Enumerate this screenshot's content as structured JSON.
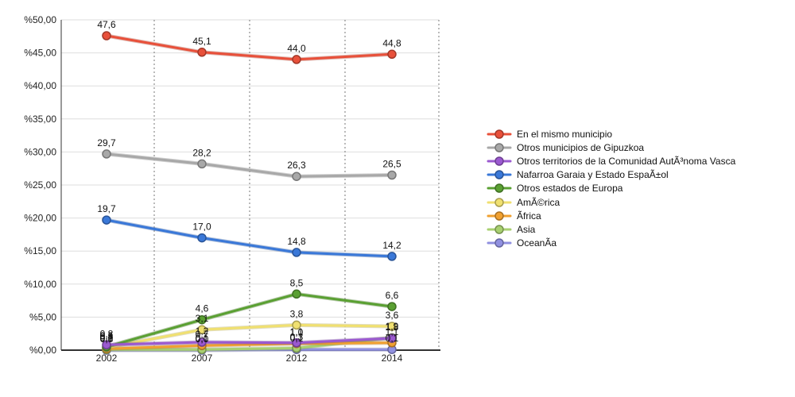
{
  "chart_data": {
    "type": "line",
    "x": [
      "2002",
      "2007",
      "2012",
      "2014"
    ],
    "ylim": [
      0,
      50
    ],
    "yticks": [
      "%0,00",
      "%5,00",
      "%10,00",
      "%15,00",
      "%20,00",
      "%25,00",
      "%30,00",
      "%35,00",
      "%40,00",
      "%45,00",
      "%50,00"
    ],
    "grid": "vertical dotted",
    "legend_position": "right",
    "series": [
      {
        "name": "En el mismo municipio",
        "color": "#e8503a",
        "values": [
          47.6,
          45.1,
          44.0,
          44.8
        ],
        "labels": [
          "47,6",
          "45,1",
          "44,0",
          "44,8"
        ]
      },
      {
        "name": "Otros municipios de Gipuzkoa",
        "color": "#a8a8a8",
        "values": [
          29.7,
          28.2,
          26.3,
          26.5
        ],
        "labels": [
          "29,7",
          "28,2",
          "26,3",
          "26,5"
        ]
      },
      {
        "name": "Otros territorios de la Comunidad AutÃ³noma Vasca",
        "color": "#9b59d0",
        "values": [
          0.8,
          1.2,
          1.1,
          1.8
        ],
        "labels": [
          "0,8",
          "1,2",
          "1,1",
          "1,8"
        ]
      },
      {
        "name": "Nafarroa Garaia y Estado EspaÃ±ol",
        "color": "#3a78d8",
        "values": [
          19.7,
          17.0,
          14.8,
          14.2
        ],
        "labels": [
          "19,7",
          "17,0",
          "14,8",
          "14,2"
        ]
      },
      {
        "name": "Otros estados de Europa",
        "color": "#5aa032",
        "values": [
          0.5,
          4.6,
          8.5,
          6.6
        ],
        "labels": [
          "0,5",
          "4,6",
          "8,5",
          "6,6"
        ]
      },
      {
        "name": "AmÃ©rica",
        "color": "#f0e070",
        "values": [
          0.4,
          3.1,
          3.8,
          3.6
        ],
        "labels": [
          "0,4",
          "3,1",
          "3,8",
          "3,6"
        ]
      },
      {
        "name": "Ãfrica",
        "color": "#f0a030",
        "values": [
          0.2,
          0.7,
          1.0,
          1.1
        ],
        "labels": [
          "0,2",
          "0,7",
          "1,0",
          "1,1"
        ]
      },
      {
        "name": "Asia",
        "color": "#a8d070",
        "values": [
          0.1,
          0.1,
          0.3,
          1.9
        ],
        "labels": [
          "0,1",
          "0,1",
          "0,3",
          "1,9"
        ]
      },
      {
        "name": "OceanÃ­a",
        "color": "#9090e0",
        "values": [
          0.0,
          0.0,
          0.1,
          0.1
        ],
        "labels": [
          "0,0",
          "0,0",
          "0,1",
          "0,1"
        ]
      }
    ]
  }
}
